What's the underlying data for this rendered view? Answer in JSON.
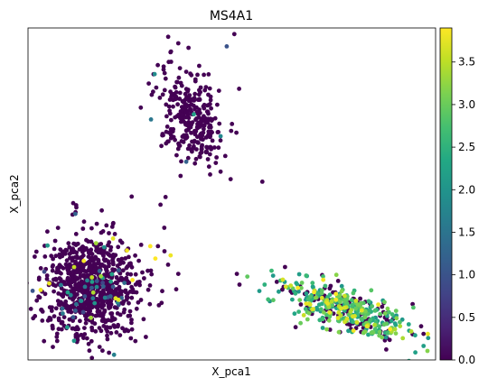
{
  "chart_data": {
    "type": "scatter",
    "title": "MS4A1",
    "xlabel": "X_pca1",
    "ylabel": "X_pca2",
    "colorbar": {
      "min": 0.0,
      "max": 3.9,
      "ticks": [
        0.0,
        0.5,
        1.0,
        1.5,
        2.0,
        2.5,
        3.0,
        3.5
      ],
      "tick_labels": [
        "0.0",
        "0.5",
        "1.0",
        "1.5",
        "2.0",
        "2.5",
        "3.0",
        "3.5"
      ],
      "colormap": "viridis"
    },
    "xlim": [
      -5,
      11
    ],
    "ylim": [
      -4,
      6.8
    ],
    "clusters": [
      {
        "cx": -2.5,
        "cy": -1.6,
        "sx": 0.95,
        "sy": 0.85,
        "n": 900,
        "rot": 0,
        "expr": {
          "p_zero": 0.94,
          "mid": [
            0.8,
            2.2
          ],
          "p_mid": 0.05,
          "p_high": 0.01
        }
      },
      {
        "cx": 1.4,
        "cy": 3.9,
        "sx": 0.55,
        "sy": 0.85,
        "n": 300,
        "rot": 0.5,
        "expr": {
          "p_zero": 0.985,
          "mid": [
            1.0,
            2.2
          ],
          "p_mid": 0.015,
          "p_high": 0.0
        }
      },
      {
        "cx": 7.5,
        "cy": -2.4,
        "sx": 1.35,
        "sy": 0.35,
        "n": 450,
        "rot": -0.3,
        "expr": {
          "p_zero": 0.3,
          "mid": [
            2.0,
            3.2
          ],
          "p_mid": 0.6,
          "p_high": 0.1
        }
      }
    ],
    "sparse_points": [
      {
        "x": -0.2,
        "y": -0.3,
        "v": 3.9
      },
      {
        "x": 0.0,
        "y": -0.7,
        "v": 3.9
      },
      {
        "x": 0.1,
        "y": -0.3,
        "v": 0.0
      },
      {
        "x": 0.5,
        "y": -0.9,
        "v": 0.0
      },
      {
        "x": -0.9,
        "y": -1.4,
        "v": 3.9
      },
      {
        "x": -0.3,
        "y": -1.1,
        "v": 0.0
      },
      {
        "x": 0.9,
        "y": -1.2,
        "v": 0.0
      },
      {
        "x": 0.4,
        "y": 1.3,
        "v": 0.0
      },
      {
        "x": 0.2,
        "y": 1.05,
        "v": 0.0
      },
      {
        "x": 0.35,
        "y": 0.3,
        "v": 0.0
      },
      {
        "x": 3.2,
        "y": -1.2,
        "v": 0.0
      },
      {
        "x": 3.3,
        "y": -1.55,
        "v": 0.0
      },
      {
        "x": 0.9,
        "y": 6.3,
        "v": 0.0
      },
      {
        "x": 3.1,
        "y": 6.6,
        "v": 0.0
      },
      {
        "x": 2.8,
        "y": 6.2,
        "v": 1.0
      },
      {
        "x": 4.2,
        "y": 1.8,
        "v": 0.0
      },
      {
        "x": 0.6,
        "y": -0.6,
        "v": 3.8
      },
      {
        "x": 10.2,
        "y": -3.2,
        "v": 2.2
      }
    ],
    "grid": false,
    "legend": "colorbar-right"
  }
}
